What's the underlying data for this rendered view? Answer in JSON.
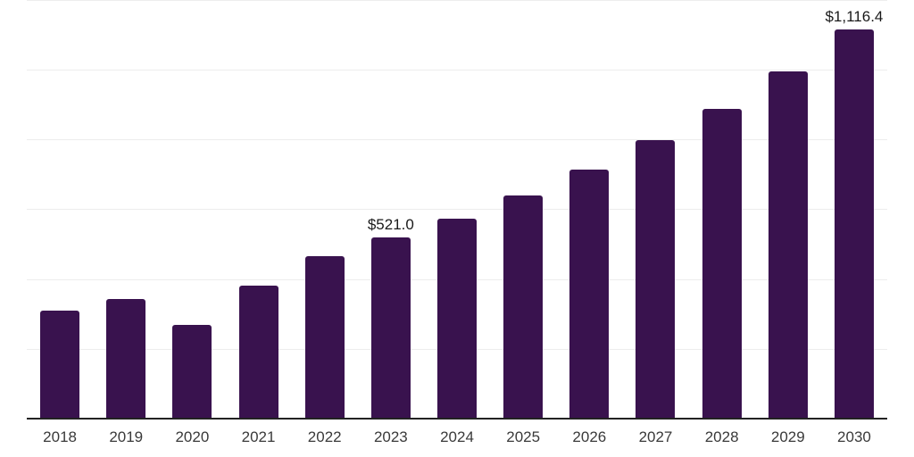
{
  "chart_data": {
    "type": "bar",
    "title": "",
    "xlabel": "",
    "ylabel": "",
    "categories": [
      "2018",
      "2019",
      "2020",
      "2021",
      "2022",
      "2023",
      "2024",
      "2025",
      "2026",
      "2027",
      "2028",
      "2029",
      "2030"
    ],
    "values": [
      311,
      345,
      272,
      383,
      467,
      521.0,
      575,
      643,
      717,
      800,
      890,
      996,
      1116.4
    ],
    "data_labels": [
      {
        "category": "2023",
        "text": "$521.0"
      },
      {
        "category": "2030",
        "text": "$1,116.4"
      }
    ],
    "ylim": [
      0,
      1200
    ],
    "grid_step": 200,
    "grid": "horizontal-only",
    "legend_position": "none",
    "colors": {
      "bar": "#39124E",
      "gridline": "#ededed",
      "axis_line": "#222222",
      "tick_label": "#3a3a3a",
      "data_label": "#1a1a1a",
      "background": "#ffffff"
    }
  }
}
